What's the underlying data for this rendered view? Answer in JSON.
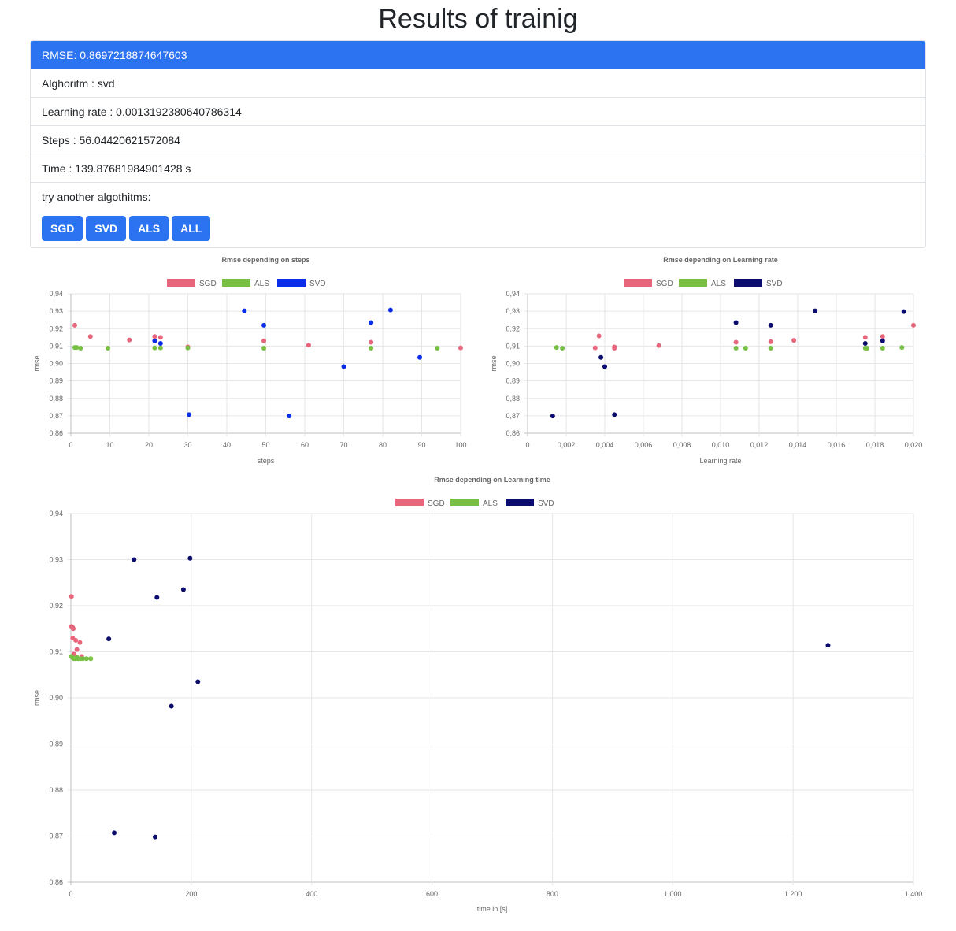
{
  "page": {
    "title": "Results of trainig"
  },
  "results": {
    "rmse": "RMSE: 0.8697218874647603",
    "algorithm": "Alghoritm : svd",
    "learning_rate": "Learning rate : 0.0013192380640786314",
    "steps": "Steps : 56.04420621572084",
    "time": "Time : 139.87681984901428 s",
    "try_label": "try another algothitms:"
  },
  "buttons": {
    "sgd": "SGD",
    "svd": "SVD",
    "als": "ALS",
    "all": "ALL"
  },
  "colors": {
    "accent": "#2b73f0",
    "sgd": "#e8667c",
    "als": "#77c043",
    "svd_bright": "#0a2ee8",
    "svd_dark": "#0b0c6e"
  },
  "chart_data": [
    {
      "type": "scatter",
      "title": "Rmse depending on steps",
      "xlabel": "steps",
      "ylabel": "rmse",
      "xlim": [
        0,
        100
      ],
      "ylim": [
        0.86,
        0.94
      ],
      "xticks": [
        "0",
        "10",
        "20",
        "30",
        "40",
        "50",
        "60",
        "70",
        "80",
        "90",
        "100"
      ],
      "yticks": [
        "0,86",
        "0,87",
        "0,88",
        "0,89",
        "0,90",
        "0,91",
        "0,92",
        "0,93",
        "0,94"
      ],
      "legend_position": "top",
      "series": [
        {
          "name": "SGD",
          "color": "#e8667c",
          "points": [
            [
              1,
              0.922
            ],
            [
              5,
              0.9155
            ],
            [
              15,
              0.9135
            ],
            [
              21.5,
              0.9155
            ],
            [
              23,
              0.915
            ],
            [
              30,
              0.9095
            ],
            [
              49.5,
              0.913
            ],
            [
              61,
              0.9105
            ],
            [
              77,
              0.9122
            ],
            [
              100,
              0.909
            ]
          ]
        },
        {
          "name": "ALS",
          "color": "#77c043",
          "points": [
            [
              1,
              0.9092
            ],
            [
              1.5,
              0.9092
            ],
            [
              2.5,
              0.9088
            ],
            [
              9.5,
              0.9088
            ],
            [
              21.5,
              0.909
            ],
            [
              23,
              0.909
            ],
            [
              30,
              0.909
            ],
            [
              49.5,
              0.9088
            ],
            [
              77,
              0.9088
            ],
            [
              94,
              0.9088
            ]
          ]
        },
        {
          "name": "SVD",
          "color": "#0a2ee8",
          "points": [
            [
              21.5,
              0.913
            ],
            [
              23,
              0.9115
            ],
            [
              30.3,
              0.8707
            ],
            [
              44.5,
              0.9302
            ],
            [
              49.5,
              0.922
            ],
            [
              56,
              0.8699
            ],
            [
              70,
              0.8982
            ],
            [
              77,
              0.9235
            ],
            [
              82,
              0.9307
            ],
            [
              89.5,
              0.9035
            ]
          ]
        }
      ]
    },
    {
      "type": "scatter",
      "title": "Rmse depending on Learning rate",
      "xlabel": "Learning rate",
      "ylabel": "rmse",
      "xlim": [
        0,
        0.02
      ],
      "ylim": [
        0.86,
        0.94
      ],
      "xticks": [
        "0",
        "0,002",
        "0,004",
        "0,006",
        "0,008",
        "0,010",
        "0,012",
        "0,014",
        "0,016",
        "0,018",
        "0,020"
      ],
      "yticks": [
        "0,86",
        "0,87",
        "0,88",
        "0,89",
        "0,90",
        "0,91",
        "0,92",
        "0,93",
        "0,94"
      ],
      "legend_position": "top",
      "series": [
        {
          "name": "SGD",
          "color": "#e8667c",
          "points": [
            [
              0.0035,
              0.909
            ],
            [
              0.0037,
              0.9158
            ],
            [
              0.0045,
              0.9095
            ],
            [
              0.0045,
              0.9088
            ],
            [
              0.0068,
              0.9103
            ],
            [
              0.0108,
              0.9122
            ],
            [
              0.0126,
              0.9125
            ],
            [
              0.0138,
              0.9133
            ],
            [
              0.0175,
              0.915
            ],
            [
              0.0184,
              0.9155
            ],
            [
              0.02,
              0.922
            ]
          ]
        },
        {
          "name": "ALS",
          "color": "#77c043",
          "points": [
            [
              0.0015,
              0.9092
            ],
            [
              0.0018,
              0.9088
            ],
            [
              0.0108,
              0.9088
            ],
            [
              0.0113,
              0.9088
            ],
            [
              0.0126,
              0.9088
            ],
            [
              0.0175,
              0.9088
            ],
            [
              0.0176,
              0.9088
            ],
            [
              0.0184,
              0.9088
            ],
            [
              0.0194,
              0.9092
            ]
          ]
        },
        {
          "name": "SVD",
          "color": "#0b0c6e",
          "points": [
            [
              0.0013,
              0.8699
            ],
            [
              0.0038,
              0.9035
            ],
            [
              0.004,
              0.8982
            ],
            [
              0.0045,
              0.8707
            ],
            [
              0.0108,
              0.9235
            ],
            [
              0.0126,
              0.922
            ],
            [
              0.0149,
              0.9302
            ],
            [
              0.0175,
              0.9115
            ],
            [
              0.0184,
              0.913
            ],
            [
              0.0195,
              0.9298
            ]
          ]
        }
      ]
    },
    {
      "type": "scatter",
      "title": "Rmse depending on Learning time",
      "xlabel": "time in [s]",
      "ylabel": "rmse",
      "xlim": [
        0,
        1400
      ],
      "ylim": [
        0.86,
        0.94
      ],
      "xticks": [
        "0",
        "200",
        "400",
        "600",
        "800",
        "1 000",
        "1 200",
        "1 400"
      ],
      "yticks": [
        "0,86",
        "0,87",
        "0,88",
        "0,89",
        "0,90",
        "0,91",
        "0,92",
        "0,93",
        "0,94"
      ],
      "legend_position": "top",
      "series": [
        {
          "name": "SGD",
          "color": "#e8667c",
          "points": [
            [
              1,
              0.922
            ],
            [
              1,
              0.9155
            ],
            [
              3,
              0.9153
            ],
            [
              4,
              0.915
            ],
            [
              3,
              0.913
            ],
            [
              8,
              0.9125
            ],
            [
              15,
              0.912
            ],
            [
              10,
              0.9105
            ],
            [
              5,
              0.9095
            ],
            [
              18,
              0.909
            ],
            [
              2,
              0.9088
            ]
          ]
        },
        {
          "name": "ALS",
          "color": "#77c043",
          "points": [
            [
              2,
              0.9088
            ],
            [
              5,
              0.9085
            ],
            [
              8,
              0.9085
            ],
            [
              12,
              0.9085
            ],
            [
              16,
              0.9085
            ],
            [
              20,
              0.9085
            ],
            [
              26,
              0.9085
            ],
            [
              33,
              0.9085
            ],
            [
              1,
              0.909
            ],
            [
              10,
              0.9088
            ]
          ]
        },
        {
          "name": "SVD",
          "color": "#0b0c6e",
          "points": [
            [
              72,
              0.8707
            ],
            [
              105,
              0.93
            ],
            [
              63,
              0.9128
            ],
            [
              143,
              0.9218
            ],
            [
              140,
              0.8698
            ],
            [
              167,
              0.8982
            ],
            [
              187,
              0.9235
            ],
            [
              198,
              0.9303
            ],
            [
              211,
              0.9035
            ],
            [
              1258,
              0.9114
            ]
          ]
        }
      ]
    }
  ]
}
